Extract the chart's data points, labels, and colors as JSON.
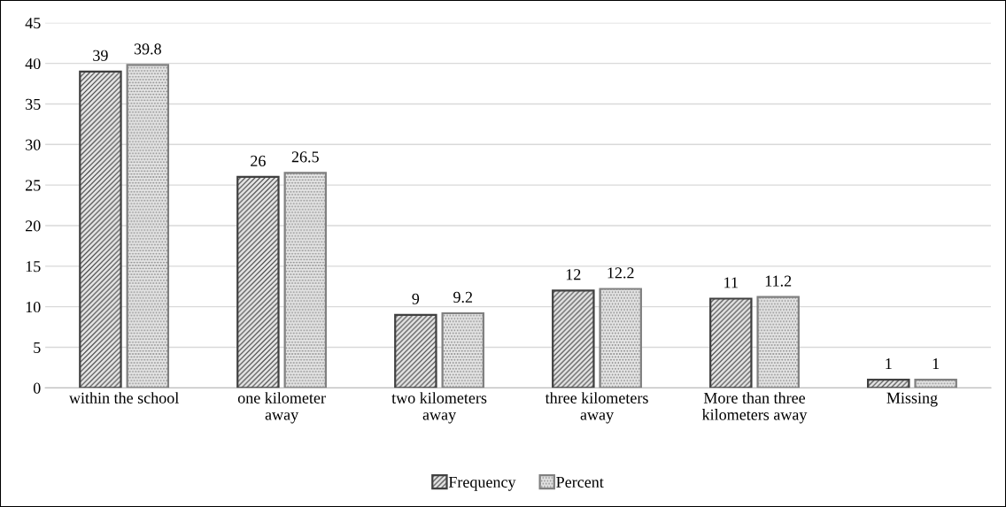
{
  "chart_data": {
    "type": "bar",
    "categories": [
      "within the school",
      "one kilometer away",
      "two kilometers away",
      "three kilometers away",
      "More than three kilometers away",
      "Missing"
    ],
    "series": [
      {
        "name": "Frequency",
        "color": "#404040",
        "values": [
          39,
          26,
          9,
          12,
          11,
          1
        ]
      },
      {
        "name": "Percent",
        "color": "#808080",
        "values": [
          39.8,
          26.5,
          9.2,
          12.2,
          11.2,
          1
        ]
      }
    ],
    "ylim": [
      0,
      45
    ],
    "yticks": [
      0,
      5,
      10,
      15,
      20,
      25,
      30,
      35,
      40,
      45
    ],
    "grid": "y",
    "legend": "bottom",
    "data_labels": true
  }
}
